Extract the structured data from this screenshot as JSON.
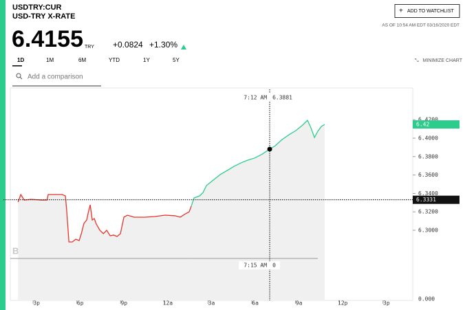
{
  "header": {
    "symbol": "USDTRY:CUR",
    "name": "USD-TRY X-RATE",
    "price": "6.4155",
    "currency": "TRY",
    "change": "+0.0824",
    "change_pct": "+1.30%",
    "watchlist": "ADD TO WATCHLIST",
    "as_of": "AS OF 10:54 AM EDT 03/16/2020 EDT"
  },
  "tabs": [
    "1D",
    "1M",
    "6M",
    "YTD",
    "1Y",
    "5Y"
  ],
  "minimize": "MINIMIZE CHART",
  "comparison_placeholder": "Add a comparison",
  "watermark": "BloombergMarkets",
  "chart_data": {
    "type": "line",
    "xlim": [
      13.2,
      40.8
    ],
    "ylim": [
      6.2694,
      6.453
    ],
    "xticks": [
      {
        "value": 15,
        "label": "3p"
      },
      {
        "value": 18,
        "label": "6p"
      },
      {
        "value": 21,
        "label": "9p"
      },
      {
        "value": 24,
        "label": "12a"
      },
      {
        "value": 27,
        "label": "3a"
      },
      {
        "value": 30,
        "label": "6a"
      },
      {
        "value": 33,
        "label": "9a"
      },
      {
        "value": 36,
        "label": "12p"
      },
      {
        "value": 39,
        "label": "3p"
      }
    ],
    "yticks": [
      {
        "value": 6.3,
        "label": "6.3000"
      },
      {
        "value": 6.32,
        "label": "6.3200"
      },
      {
        "value": 6.34,
        "label": "6.3400"
      },
      {
        "value": 6.36,
        "label": "6.3600"
      },
      {
        "value": 6.38,
        "label": "6.3800"
      },
      {
        "value": 6.4,
        "label": "6.4000"
      },
      {
        "value": 6.42,
        "label": "6.4200"
      }
    ],
    "volume_tick": {
      "value": 0,
      "label": "0.000"
    },
    "series": [
      {
        "color": "#e8332a",
        "x": [
          13.73,
          13.92,
          14.15,
          14.62,
          15.33,
          15.71,
          15.8,
          16.27,
          16.75,
          16.98,
          17.08,
          17.22,
          17.45,
          17.69,
          17.92,
          18.07,
          18.25,
          18.44,
          18.54,
          18.68,
          18.82,
          18.96,
          19.1,
          19.34,
          19.58,
          19.81,
          20.05,
          20.28,
          20.52,
          20.75,
          20.99,
          21.23,
          21.7,
          22.41,
          23.11,
          23.82,
          24.53,
          24.86,
          25.14,
          25.47,
          25.61
        ],
        "values": [
          6.3306,
          6.3388,
          6.3328,
          6.3336,
          6.3328,
          6.3328,
          6.3388,
          6.3388,
          6.3388,
          6.3373,
          6.3187,
          6.2873,
          6.2873,
          6.2903,
          6.2888,
          6.2963,
          6.3075,
          6.3112,
          6.3187,
          6.3276,
          6.3112,
          6.3127,
          6.3067,
          6.3,
          6.2963,
          6.3,
          6.294,
          6.2948,
          6.2933,
          6.2963,
          6.3142,
          6.3164,
          6.3142,
          6.3142,
          6.3149,
          6.3164,
          6.3157,
          6.3142,
          6.3172,
          6.3201,
          6.3261
        ]
      },
      {
        "color": "#2bcc8c",
        "x": [
          25.61,
          25.8,
          26.18,
          26.42,
          26.65,
          27.12,
          27.59,
          28.07,
          28.54,
          29.01,
          29.48,
          29.95,
          30.42,
          30.99,
          31.37,
          31.84,
          32.31,
          32.78,
          33.25,
          33.58,
          33.82,
          34.06,
          34.29,
          34.53,
          34.76
        ],
        "values": [
          6.3261,
          6.3351,
          6.3373,
          6.341,
          6.3485,
          6.3545,
          6.3604,
          6.3649,
          6.3694,
          6.3731,
          6.3761,
          6.3784,
          6.3821,
          6.3881,
          6.3918,
          6.3985,
          6.4037,
          6.4082,
          6.4142,
          6.4194,
          6.4112,
          6.4007,
          6.4075,
          6.4127,
          6.4149
        ]
      }
    ],
    "last_price_label": "6.42",
    "prev_close": {
      "value": 6.3331,
      "label": "6.3331"
    },
    "crosshair": {
      "x": 30.99,
      "time_label": "7:12 AM",
      "value": 6.3881,
      "value_label": "6.3881"
    },
    "crosshair_volume": {
      "time_label": "7:15 AM",
      "value": 0
    }
  }
}
